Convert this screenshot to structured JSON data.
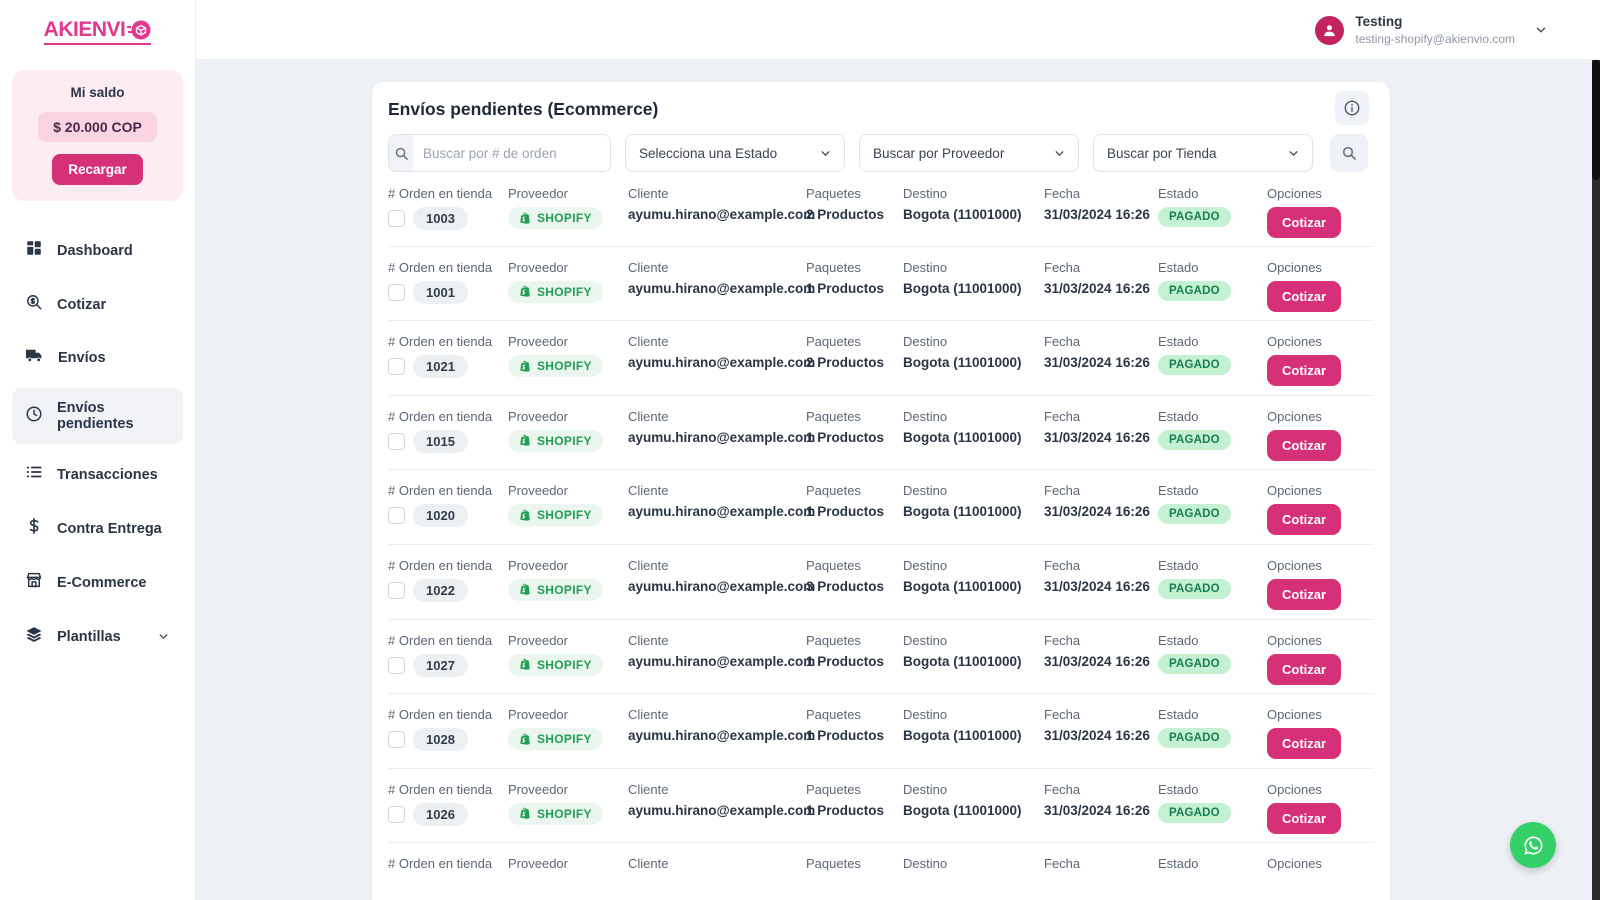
{
  "brand": {
    "name": "AKIENVI",
    "accent_color": "#e3388f"
  },
  "header": {
    "user": {
      "name": "Testing",
      "email": "testing-shopify@akienvio.com"
    }
  },
  "sidebar": {
    "balance": {
      "title": "Mi saldo",
      "amount": "$ 20.000 COP",
      "recharge_label": "Recargar"
    },
    "items": [
      {
        "label": "Dashboard",
        "icon": "dashboard-icon",
        "active": false
      },
      {
        "label": "Cotizar",
        "icon": "quote-search-icon",
        "active": false
      },
      {
        "label": "Envíos",
        "icon": "truck-icon",
        "active": false
      },
      {
        "label": "Envíos pendientes",
        "icon": "clock-icon",
        "active": true
      },
      {
        "label": "Transacciones",
        "icon": "list-icon",
        "active": false
      },
      {
        "label": "Contra Entrega",
        "icon": "dollar-icon",
        "active": false
      },
      {
        "label": "E-Commerce",
        "icon": "store-icon",
        "active": false
      },
      {
        "label": "Plantillas",
        "icon": "layers-icon",
        "active": false,
        "expandable": true
      }
    ]
  },
  "main": {
    "title": "Envíos pendientes (Ecommerce)",
    "filters": {
      "search_placeholder": "Buscar por # de orden",
      "status_select": "Selecciona una Estado",
      "provider_select": "Buscar por Proveedor",
      "store_select": "Buscar por Tienda"
    },
    "table": {
      "labels": {
        "order": "# Orden en tienda",
        "provider": "Proveedor",
        "client": "Cliente",
        "packages": "Paquetes",
        "destination": "Destino",
        "date": "Fecha",
        "status": "Estado",
        "options": "Opciones"
      },
      "action_label": "Cotizar",
      "rows": [
        {
          "order": "1003",
          "provider": "SHOPIFY",
          "client": "ayumu.hirano@example.com",
          "packages": "2 Productos",
          "destination": "Bogota (11001000)",
          "date": "31/03/2024 16:26",
          "status": "PAGADO"
        },
        {
          "order": "1001",
          "provider": "SHOPIFY",
          "client": "ayumu.hirano@example.com",
          "packages": "1 Productos",
          "destination": "Bogota (11001000)",
          "date": "31/03/2024 16:26",
          "status": "PAGADO"
        },
        {
          "order": "1021",
          "provider": "SHOPIFY",
          "client": "ayumu.hirano@example.com",
          "packages": "2 Productos",
          "destination": "Bogota (11001000)",
          "date": "31/03/2024 16:26",
          "status": "PAGADO"
        },
        {
          "order": "1015",
          "provider": "SHOPIFY",
          "client": "ayumu.hirano@example.com",
          "packages": "1 Productos",
          "destination": "Bogota (11001000)",
          "date": "31/03/2024 16:26",
          "status": "PAGADO"
        },
        {
          "order": "1020",
          "provider": "SHOPIFY",
          "client": "ayumu.hirano@example.com",
          "packages": "1 Productos",
          "destination": "Bogota (11001000)",
          "date": "31/03/2024 16:26",
          "status": "PAGADO"
        },
        {
          "order": "1022",
          "provider": "SHOPIFY",
          "client": "ayumu.hirano@example.com",
          "packages": "3 Productos",
          "destination": "Bogota (11001000)",
          "date": "31/03/2024 16:26",
          "status": "PAGADO"
        },
        {
          "order": "1027",
          "provider": "SHOPIFY",
          "client": "ayumu.hirano@example.com",
          "packages": "1 Productos",
          "destination": "Bogota (11001000)",
          "date": "31/03/2024 16:26",
          "status": "PAGADO"
        },
        {
          "order": "1028",
          "provider": "SHOPIFY",
          "client": "ayumu.hirano@example.com",
          "packages": "1 Productos",
          "destination": "Bogota (11001000)",
          "date": "31/03/2024 16:26",
          "status": "PAGADO"
        },
        {
          "order": "1026",
          "provider": "SHOPIFY",
          "client": "ayumu.hirano@example.com",
          "packages": "1 Productos",
          "destination": "Bogota (11001000)",
          "date": "31/03/2024 16:26",
          "status": "PAGADO"
        }
      ],
      "partial_row": true
    }
  },
  "colors": {
    "accent": "#d63178",
    "avatar": "#c22360",
    "status_bg": "#c5f1d3",
    "status_text": "#17804a",
    "shopify_green": "#1f9e54",
    "whatsapp_green": "#36d06a",
    "content_bg": "#edf0f4"
  }
}
